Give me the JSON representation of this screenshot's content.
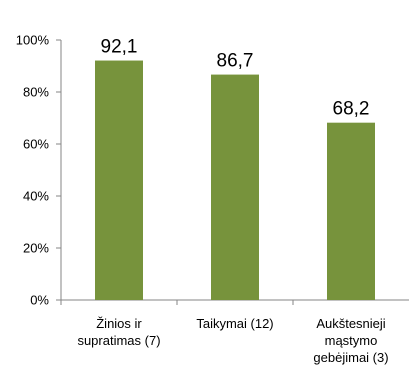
{
  "chart_data": {
    "type": "bar",
    "categories": [
      [
        "Žinios ir",
        "supratimas (7)"
      ],
      [
        "Taikymai (12)"
      ],
      [
        "Aukštesnieji",
        "mąstymo",
        "gebėjimai (3)"
      ]
    ],
    "values": [
      92.1,
      86.7,
      68.2
    ],
    "data_labels": [
      "92,1",
      "86,7",
      "68,2"
    ],
    "yticks": [
      {
        "value": 0,
        "label": "0%"
      },
      {
        "value": 20,
        "label": "20%"
      },
      {
        "value": 40,
        "label": "40%"
      },
      {
        "value": 60,
        "label": "60%"
      },
      {
        "value": 80,
        "label": "80%"
      },
      {
        "value": 100,
        "label": "100%"
      }
    ],
    "ylim": [
      0,
      100
    ],
    "grid": false,
    "legend": "none",
    "bar_color": "#77933c",
    "title": "",
    "xlabel": "",
    "ylabel": ""
  }
}
